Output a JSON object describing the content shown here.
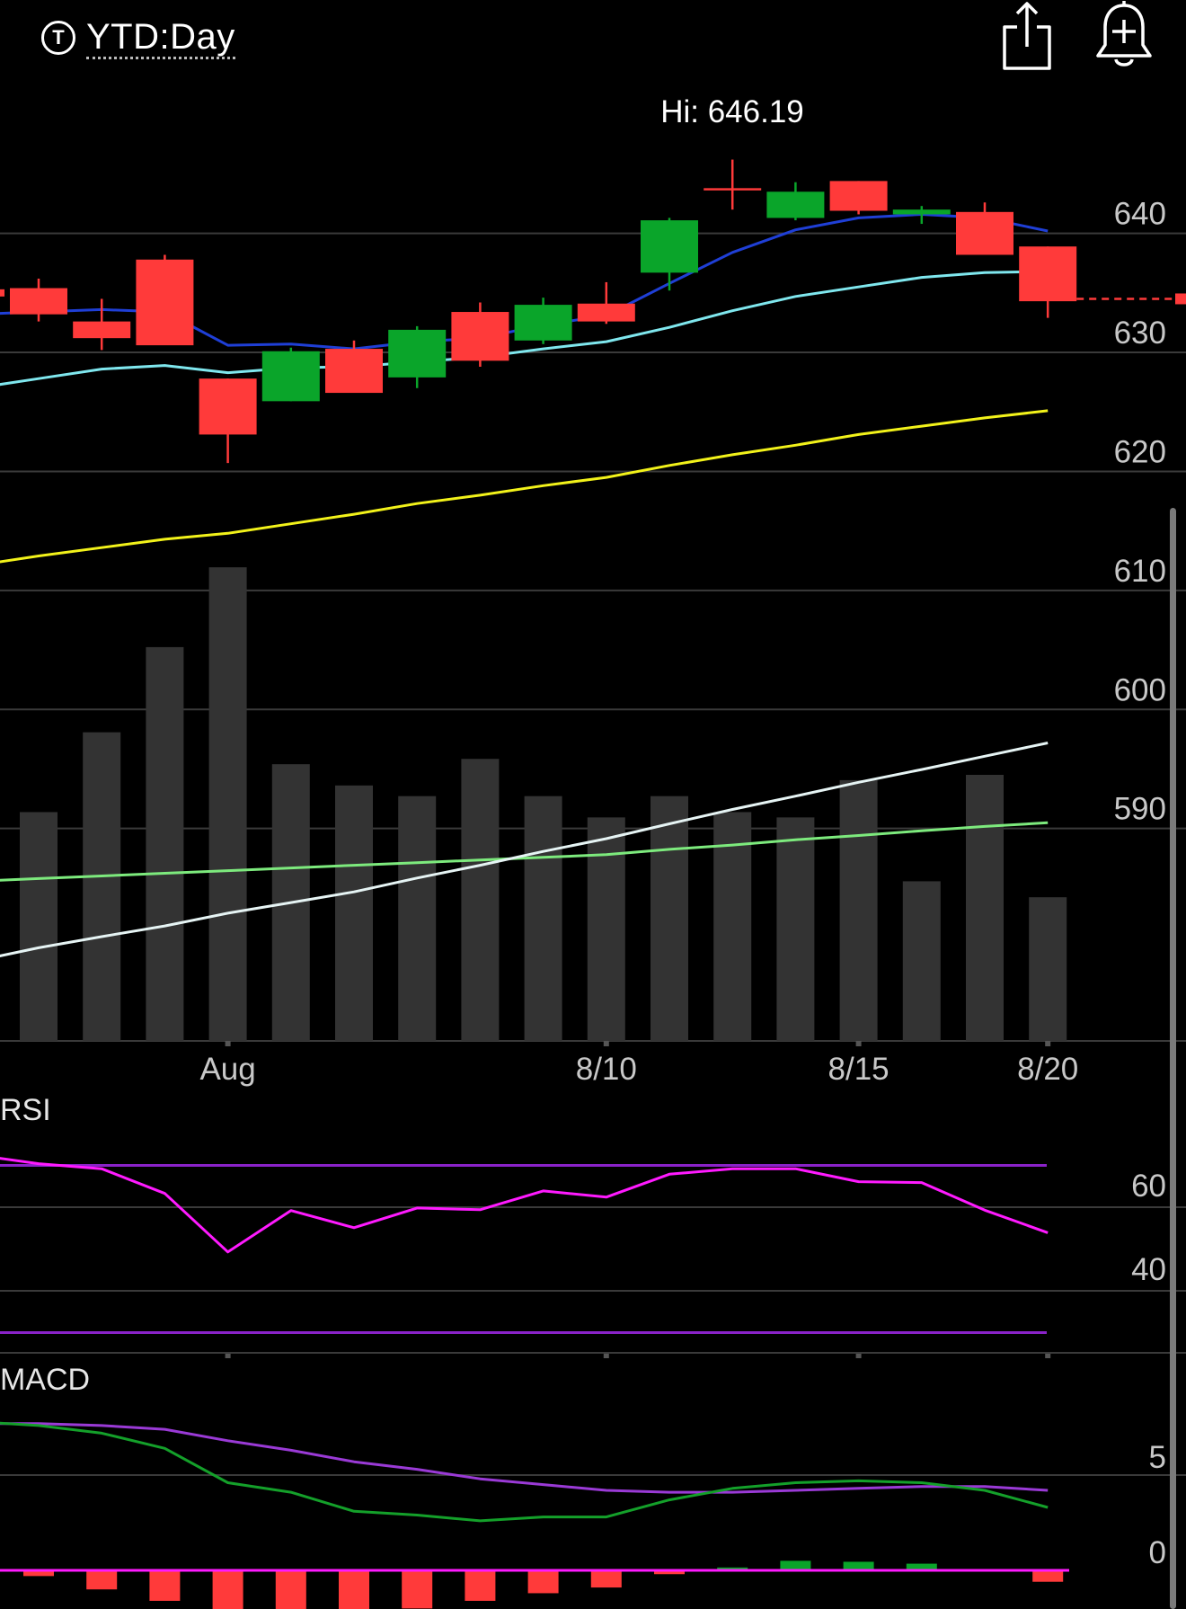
{
  "header": {
    "ticker_badge": "T",
    "title": "YTD:Day",
    "share_icon": "share-icon",
    "alert_icon": "bell-plus-icon"
  },
  "chart_data": {
    "type": "candlestick",
    "hi_label": "Hi: 646.19",
    "last_price": 634.5,
    "x_tick_labels": [
      {
        "index": 3,
        "label": "Aug"
      },
      {
        "index": 9,
        "label": "8/10"
      },
      {
        "index": 13,
        "label": "8/15"
      },
      {
        "index": 16,
        "label": "8/20"
      }
    ],
    "price_axis": {
      "min": 572,
      "max": 651,
      "ticks": [
        640,
        630,
        620,
        610,
        600,
        590
      ]
    },
    "candles": [
      {
        "o": 635.4,
        "h": 636.2,
        "l": 632.6,
        "c": 633.2,
        "dir": "down"
      },
      {
        "o": 632.6,
        "h": 634.5,
        "l": 630.2,
        "c": 631.2,
        "dir": "down"
      },
      {
        "o": 637.8,
        "h": 638.2,
        "l": 630.8,
        "c": 630.6,
        "dir": "down"
      },
      {
        "o": 627.8,
        "h": 627.8,
        "l": 620.7,
        "c": 623.1,
        "dir": "down"
      },
      {
        "o": 625.9,
        "h": 630.4,
        "l": 625.9,
        "c": 630.1,
        "dir": "up"
      },
      {
        "o": 630.3,
        "h": 631.0,
        "l": 626.8,
        "c": 626.6,
        "dir": "down"
      },
      {
        "o": 627.9,
        "h": 632.2,
        "l": 627.0,
        "c": 631.9,
        "dir": "up"
      },
      {
        "o": 633.4,
        "h": 634.2,
        "l": 628.8,
        "c": 629.3,
        "dir": "down"
      },
      {
        "o": 631.0,
        "h": 634.6,
        "l": 630.7,
        "c": 634.0,
        "dir": "up"
      },
      {
        "o": 634.1,
        "h": 635.9,
        "l": 632.4,
        "c": 632.6,
        "dir": "down"
      },
      {
        "o": 636.7,
        "h": 641.3,
        "l": 635.2,
        "c": 641.1,
        "dir": "up"
      },
      {
        "o": 643.8,
        "h": 646.2,
        "l": 642.0,
        "c": 643.8,
        "dir": "down"
      },
      {
        "o": 641.3,
        "h": 644.3,
        "l": 641.1,
        "c": 643.5,
        "dir": "up"
      },
      {
        "o": 644.4,
        "h": 644.4,
        "l": 641.6,
        "c": 641.9,
        "dir": "down"
      },
      {
        "o": 641.6,
        "h": 642.3,
        "l": 640.8,
        "c": 642.0,
        "dir": "up"
      },
      {
        "o": 641.8,
        "h": 642.6,
        "l": 638.4,
        "c": 638.2,
        "dir": "down"
      },
      {
        "o": 638.9,
        "h": 638.9,
        "l": 632.9,
        "c": 634.3,
        "dir": "down"
      }
    ],
    "ma_blue": [
      633.2,
      633.4,
      633.6,
      633.4,
      630.6,
      630.7,
      630.3,
      630.9,
      631.2,
      632.3,
      633.1,
      635.8,
      638.4,
      640.3,
      641.3,
      641.6,
      641.3,
      640.2
    ],
    "ma_cyan": [
      627.0,
      627.8,
      628.6,
      628.9,
      628.3,
      628.7,
      628.8,
      629.2,
      629.6,
      630.3,
      630.9,
      632.1,
      633.5,
      634.7,
      635.5,
      636.3,
      636.7,
      636.8
    ],
    "ma_yellow": [
      612.1,
      612.9,
      613.6,
      614.3,
      614.8,
      615.6,
      616.4,
      617.3,
      618.0,
      618.8,
      619.5,
      620.5,
      621.4,
      622.2,
      623.1,
      623.8,
      624.5,
      625.1
    ],
    "volume_axis_max": 100,
    "volume": [
      43,
      58,
      74,
      89,
      52,
      48,
      46,
      53,
      46,
      42,
      46,
      43,
      42,
      49,
      30,
      50,
      27
    ],
    "volume_ma_green": [
      30,
      30.5,
      31,
      31.5,
      32,
      32.5,
      33,
      33.5,
      34,
      34.5,
      35,
      36,
      36.8,
      37.8,
      38.6,
      39.5,
      40.3,
      41
    ],
    "volume_ma_white": [
      15,
      17.5,
      19.6,
      21.6,
      24,
      26,
      28,
      30.6,
      33,
      35.6,
      38,
      40.8,
      43.5,
      46,
      48.6,
      51,
      53.5,
      56
    ],
    "rsi": {
      "label": "RSI",
      "axis_ticks": [
        60,
        40
      ],
      "overbought": 70,
      "oversold": 30,
      "values": [
        72.5,
        70.4,
        69.2,
        63.3,
        49.3,
        59.2,
        55.1,
        59.8,
        59.4,
        63.9,
        62.4,
        67.9,
        69.2,
        69.2,
        66.1,
        65.9,
        59.3,
        53.9
      ]
    },
    "macd": {
      "label": "MACD",
      "axis_ticks": [
        5,
        0
      ],
      "macd_line": [
        7.8,
        7.6,
        7.2,
        6.4,
        4.6,
        4.1,
        3.1,
        2.9,
        2.6,
        2.8,
        2.8,
        3.7,
        4.3,
        4.6,
        4.7,
        4.6,
        4.2,
        3.3
      ],
      "signal_line": [
        7.7,
        7.7,
        7.6,
        7.4,
        6.8,
        6.3,
        5.7,
        5.3,
        4.8,
        4.5,
        4.2,
        4.1,
        4.1,
        4.2,
        4.3,
        4.4,
        4.4,
        4.2
      ],
      "histogram": [
        -0.3,
        -1.0,
        -1.6,
        -2.2,
        -2.1,
        -2.5,
        -2.0,
        -1.6,
        -1.2,
        -0.9,
        -0.2,
        0.15,
        0.5,
        0.45,
        0.35,
        0.0,
        -0.6
      ]
    }
  }
}
